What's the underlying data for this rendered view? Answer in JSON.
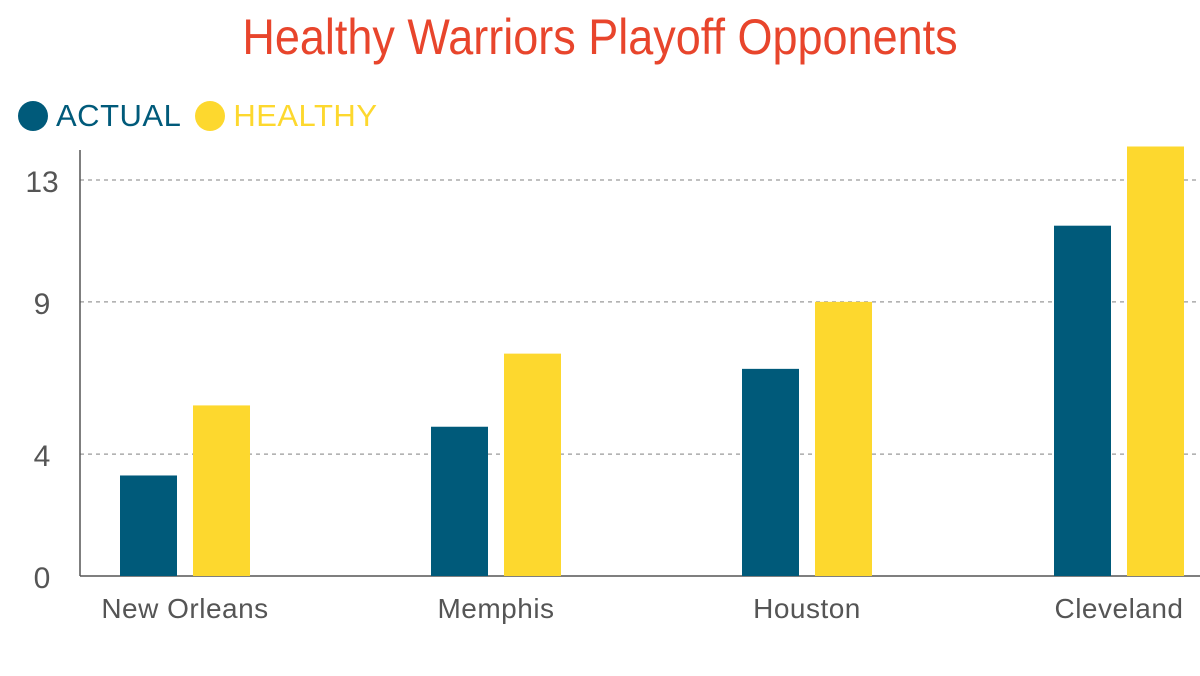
{
  "colors": {
    "title": "#e8452c",
    "actual": "#005a7a",
    "healthy": "#fdd82e",
    "axis": "#555555",
    "grid": "#9a9a9a",
    "tick_text": "#555555"
  },
  "chart_data": {
    "type": "bar",
    "title": "Healthy Warriors Playoff Opponents",
    "categories": [
      "New Orleans",
      "Memphis",
      "Houston",
      "Cleveland"
    ],
    "series": [
      {
        "name": "ACTUAL",
        "values": [
          3.3,
          4.9,
          6.8,
          11.5
        ]
      },
      {
        "name": "HEALTHY",
        "values": [
          5.6,
          7.3,
          9.0,
          14.1
        ]
      }
    ],
    "yticks": [
      0,
      4,
      9,
      13
    ],
    "ylim": [
      0,
      14.5
    ],
    "grid": true,
    "legend_position": "top-left",
    "xlabel": "",
    "ylabel": ""
  }
}
